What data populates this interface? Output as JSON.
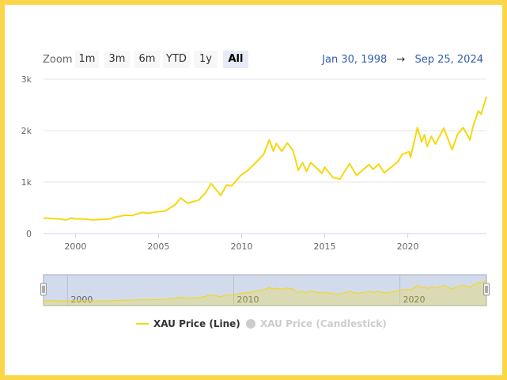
{
  "range_selector": {
    "zoom_label": "Zoom",
    "buttons": [
      "1m",
      "3m",
      "6m",
      "YTD",
      "1y",
      "All"
    ],
    "active": "All",
    "from_date": "Jan 30, 1998",
    "arrow": "→",
    "to_date": "Sep 25, 2024"
  },
  "legend": {
    "line_label": "XAU Price (Line)",
    "candle_label": "XAU Price (Candlestick)"
  },
  "colors": {
    "line": "#f5d80f",
    "navigator_fill": "#d2dbeb",
    "navigator_border": "#a5aab5",
    "grid": "#e6e6e6",
    "axis_text": "#666666",
    "date_text": "#335cad",
    "legend_disabled": "#cccccc",
    "border": "#fcd649"
  },
  "chart_data": {
    "type": "line",
    "title": "",
    "xlabel": "",
    "ylabel": "",
    "ylim": [
      0,
      3000
    ],
    "xlim": [
      "1998-01-30",
      "2024-09-25"
    ],
    "y_ticks": [
      "0",
      "1k",
      "2k",
      "3k"
    ],
    "x_ticks": [
      "2000",
      "2005",
      "2010",
      "2015",
      "2020"
    ],
    "navigator_ticks": [
      "2000",
      "2010",
      "2020"
    ],
    "series": [
      {
        "name": "XAU Price (Line)",
        "points": [
          [
            "1998-01-30",
            300
          ],
          [
            "1998-06-01",
            295
          ],
          [
            "1999-01-01",
            285
          ],
          [
            "1999-06-01",
            265
          ],
          [
            "1999-10-01",
            300
          ],
          [
            "2000-01-01",
            285
          ],
          [
            "2000-06-01",
            285
          ],
          [
            "2001-01-01",
            265
          ],
          [
            "2001-06-01",
            270
          ],
          [
            "2002-01-01",
            280
          ],
          [
            "2002-06-01",
            320
          ],
          [
            "2003-01-01",
            355
          ],
          [
            "2003-06-01",
            350
          ],
          [
            "2004-01-01",
            410
          ],
          [
            "2004-06-01",
            395
          ],
          [
            "2005-01-01",
            425
          ],
          [
            "2005-06-01",
            440
          ],
          [
            "2006-01-01",
            560
          ],
          [
            "2006-05-01",
            690
          ],
          [
            "2006-10-01",
            590
          ],
          [
            "2007-06-01",
            650
          ],
          [
            "2007-11-01",
            790
          ],
          [
            "2008-03-01",
            970
          ],
          [
            "2008-10-01",
            740
          ],
          [
            "2009-02-01",
            940
          ],
          [
            "2009-06-01",
            930
          ],
          [
            "2009-12-01",
            1120
          ],
          [
            "2010-06-01",
            1240
          ],
          [
            "2010-12-01",
            1400
          ],
          [
            "2011-05-01",
            1540
          ],
          [
            "2011-09-01",
            1820
          ],
          [
            "2011-12-01",
            1600
          ],
          [
            "2012-02-01",
            1750
          ],
          [
            "2012-06-01",
            1600
          ],
          [
            "2012-10-01",
            1760
          ],
          [
            "2013-02-01",
            1620
          ],
          [
            "2013-06-01",
            1230
          ],
          [
            "2013-09-01",
            1380
          ],
          [
            "2013-12-01",
            1210
          ],
          [
            "2014-03-01",
            1380
          ],
          [
            "2014-11-01",
            1170
          ],
          [
            "2015-01-01",
            1290
          ],
          [
            "2015-07-01",
            1090
          ],
          [
            "2015-12-01",
            1060
          ],
          [
            "2016-07-01",
            1360
          ],
          [
            "2016-12-01",
            1130
          ],
          [
            "2017-09-01",
            1340
          ],
          [
            "2017-12-01",
            1250
          ],
          [
            "2018-04-01",
            1350
          ],
          [
            "2018-08-01",
            1180
          ],
          [
            "2019-01-01",
            1290
          ],
          [
            "2019-06-01",
            1400
          ],
          [
            "2019-09-01",
            1540
          ],
          [
            "2020-02-01",
            1590
          ],
          [
            "2020-03-01",
            1480
          ],
          [
            "2020-08-01",
            2060
          ],
          [
            "2020-11-01",
            1780
          ],
          [
            "2021-01-01",
            1920
          ],
          [
            "2021-03-01",
            1690
          ],
          [
            "2021-06-01",
            1890
          ],
          [
            "2021-09-01",
            1740
          ],
          [
            "2022-03-01",
            2050
          ],
          [
            "2022-09-01",
            1630
          ],
          [
            "2023-01-01",
            1930
          ],
          [
            "2023-05-01",
            2060
          ],
          [
            "2023-10-01",
            1820
          ],
          [
            "2023-12-01",
            2070
          ],
          [
            "2024-04-01",
            2380
          ],
          [
            "2024-06-01",
            2320
          ],
          [
            "2024-09-25",
            2660
          ]
        ]
      }
    ]
  }
}
